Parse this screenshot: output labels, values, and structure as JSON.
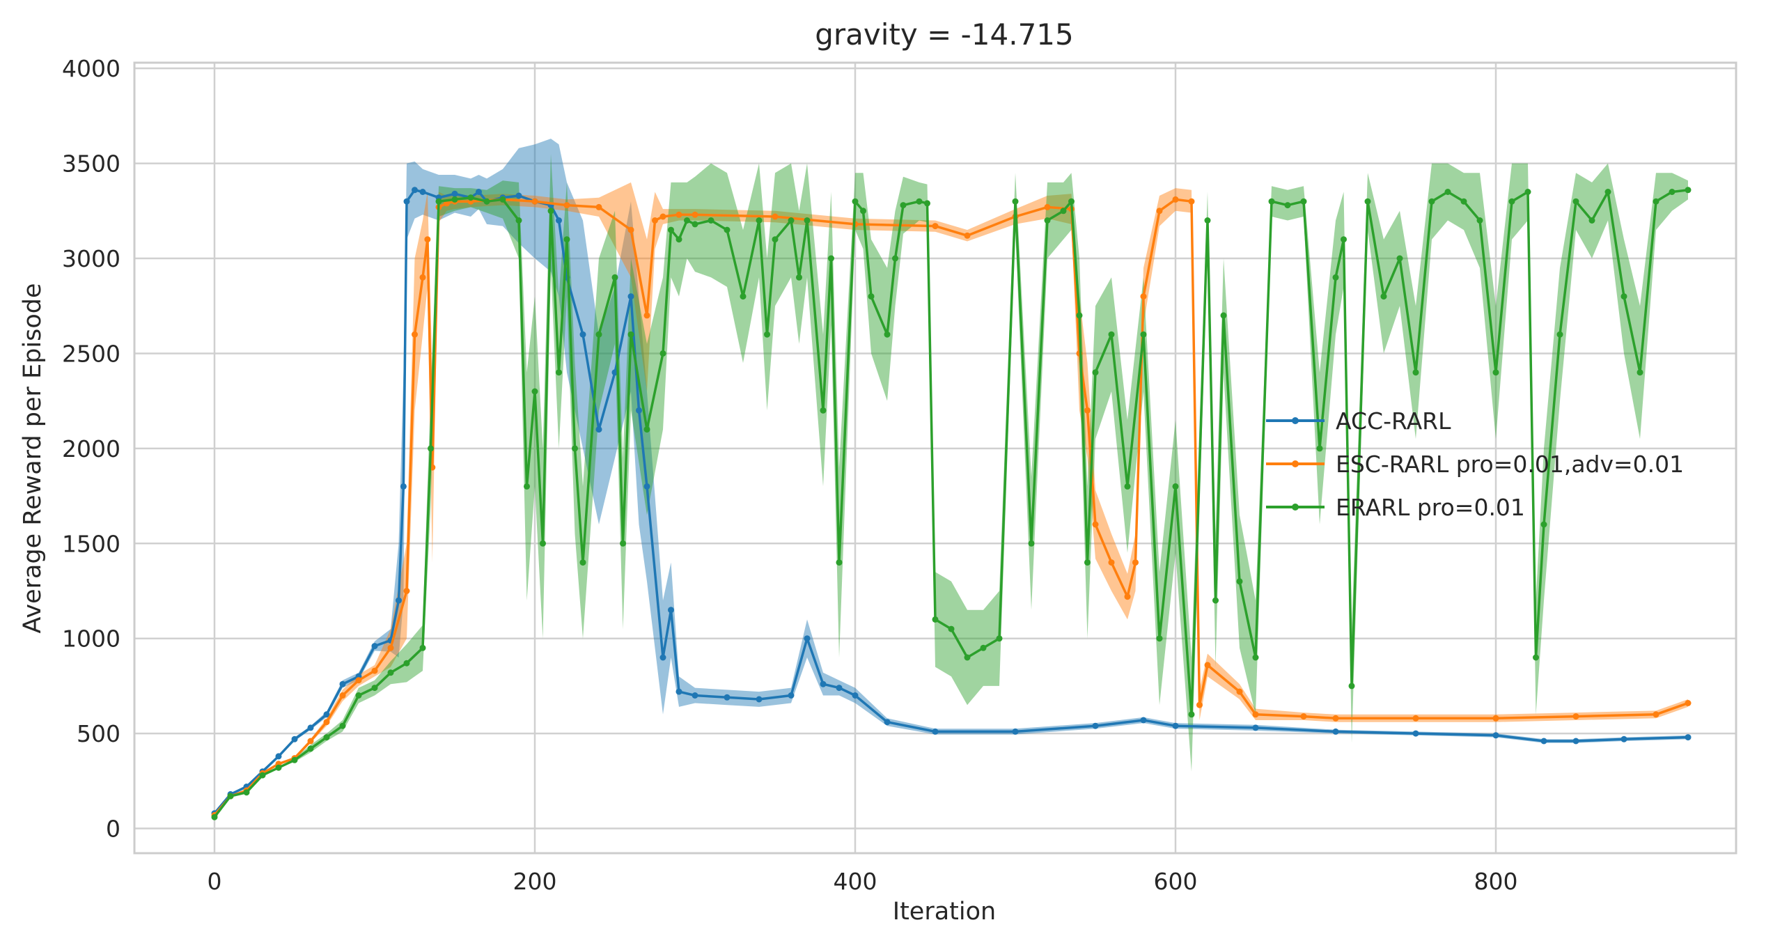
{
  "chart_data": {
    "type": "line",
    "title": "gravity = -14.715",
    "xlabel": "Iteration",
    "ylabel": "Average Reward per Episode",
    "xlim": [
      -50,
      950
    ],
    "ylim": [
      -130,
      4030
    ],
    "xticks": [
      0,
      200,
      400,
      600,
      800
    ],
    "yticks": [
      0,
      500,
      1000,
      1500,
      2000,
      2500,
      3000,
      3500,
      4000
    ],
    "grid": true,
    "legend": {
      "position": "right",
      "entries": [
        " ACC-RARL",
        "ESC-RARL pro=0.01,adv=0.01",
        "ERARL pro=0.01"
      ]
    },
    "series": [
      {
        "name": " ACC-RARL",
        "color": "#1f77b4",
        "x": [
          0,
          10,
          20,
          30,
          40,
          50,
          60,
          70,
          80,
          90,
          100,
          110,
          115,
          118,
          120,
          125,
          130,
          140,
          150,
          160,
          165,
          170,
          180,
          190,
          200,
          210,
          215,
          220,
          230,
          240,
          250,
          260,
          265,
          270,
          280,
          285,
          290,
          300,
          320,
          340,
          360,
          370,
          380,
          390,
          400,
          420,
          450,
          500,
          550,
          580,
          600,
          650,
          700,
          750,
          800,
          830,
          850,
          880,
          920
        ],
        "y": [
          80,
          180,
          220,
          300,
          380,
          470,
          530,
          600,
          760,
          800,
          960,
          990,
          1200,
          1800,
          3300,
          3360,
          3350,
          3320,
          3340,
          3320,
          3350,
          3300,
          3320,
          3330,
          3300,
          3280,
          3200,
          2900,
          2600,
          2100,
          2400,
          2800,
          2200,
          1800,
          900,
          1150,
          720,
          700,
          690,
          680,
          700,
          1000,
          760,
          740,
          700,
          560,
          510,
          510,
          540,
          570,
          540,
          530,
          510,
          500,
          490,
          460,
          460,
          470,
          480
        ],
        "band": [
          0,
          0,
          0,
          0,
          0,
          10,
          10,
          15,
          20,
          20,
          25,
          60,
          300,
          600,
          200,
          150,
          120,
          120,
          100,
          100,
          90,
          120,
          150,
          250,
          300,
          350,
          400,
          500,
          600,
          500,
          450,
          500,
          600,
          500,
          300,
          250,
          80,
          40,
          40,
          40,
          40,
          100,
          60,
          40,
          40,
          20,
          15,
          15,
          15,
          15,
          15,
          15,
          10,
          10,
          10,
          10,
          10,
          10,
          10
        ]
      },
      {
        "name": "ESC-RARL pro=0.01,adv=0.01",
        "color": "#ff7f0e",
        "x": [
          0,
          10,
          20,
          30,
          40,
          50,
          60,
          70,
          80,
          90,
          100,
          110,
          120,
          125,
          130,
          133,
          136,
          140,
          145,
          150,
          160,
          180,
          200,
          220,
          240,
          260,
          270,
          275,
          280,
          290,
          300,
          350,
          400,
          450,
          470,
          500,
          520,
          535,
          540,
          545,
          550,
          560,
          570,
          575,
          580,
          590,
          600,
          610,
          615,
          620,
          640,
          650,
          680,
          700,
          750,
          800,
          850,
          900,
          920
        ],
        "y": [
          70,
          170,
          200,
          290,
          340,
          370,
          460,
          560,
          700,
          780,
          830,
          950,
          1250,
          2600,
          2900,
          3100,
          1900,
          3270,
          3290,
          3300,
          3300,
          3310,
          3300,
          3280,
          3270,
          3150,
          2700,
          3200,
          3220,
          3230,
          3230,
          3220,
          3180,
          3170,
          3120,
          3220,
          3270,
          3260,
          2500,
          2200,
          1600,
          1400,
          1220,
          1400,
          2800,
          3250,
          3310,
          3300,
          650,
          860,
          720,
          600,
          590,
          580,
          580,
          580,
          590,
          600,
          660
        ],
        "band": [
          0,
          0,
          0,
          0,
          0,
          0,
          10,
          20,
          30,
          30,
          30,
          100,
          250,
          400,
          300,
          250,
          500,
          80,
          40,
          40,
          30,
          30,
          30,
          30,
          50,
          250,
          400,
          150,
          40,
          30,
          30,
          30,
          30,
          30,
          30,
          40,
          60,
          80,
          300,
          250,
          180,
          150,
          120,
          150,
          150,
          80,
          60,
          60,
          80,
          60,
          40,
          30,
          20,
          20,
          20,
          20,
          20,
          20,
          20
        ]
      },
      {
        "name": "ERARL pro=0.01",
        "color": "#2ca02c",
        "x": [
          0,
          10,
          20,
          30,
          40,
          50,
          60,
          70,
          80,
          90,
          100,
          110,
          120,
          130,
          135,
          140,
          150,
          160,
          170,
          180,
          190,
          195,
          200,
          205,
          210,
          215,
          220,
          225,
          230,
          240,
          250,
          255,
          260,
          270,
          280,
          285,
          290,
          295,
          300,
          310,
          320,
          330,
          340,
          345,
          350,
          360,
          365,
          370,
          380,
          385,
          390,
          400,
          405,
          410,
          420,
          425,
          430,
          440,
          445,
          450,
          460,
          470,
          480,
          490,
          500,
          510,
          520,
          530,
          535,
          540,
          545,
          550,
          560,
          570,
          580,
          590,
          600,
          610,
          620,
          625,
          630,
          640,
          650,
          660,
          670,
          680,
          690,
          700,
          705,
          710,
          720,
          730,
          740,
          750,
          760,
          770,
          780,
          790,
          800,
          810,
          820,
          825,
          830,
          840,
          850,
          860,
          870,
          880,
          890,
          900,
          910,
          920
        ],
        "y": [
          60,
          170,
          190,
          280,
          320,
          360,
          420,
          480,
          540,
          700,
          740,
          820,
          870,
          950,
          2000,
          3300,
          3310,
          3320,
          3300,
          3310,
          3200,
          1800,
          2300,
          1500,
          3250,
          2400,
          3100,
          2000,
          1400,
          2600,
          2900,
          1500,
          2600,
          2100,
          2500,
          3150,
          3100,
          3200,
          3180,
          3200,
          3150,
          2800,
          3200,
          2600,
          3100,
          3200,
          2900,
          3200,
          2200,
          3000,
          1400,
          3300,
          3250,
          2800,
          2600,
          3000,
          3280,
          3300,
          3290,
          1100,
          1050,
          900,
          950,
          1000,
          3300,
          1500,
          3200,
          3250,
          3300,
          2700,
          1400,
          2400,
          2600,
          1800,
          2600,
          1000,
          1800,
          600,
          3200,
          1200,
          2700,
          1300,
          900,
          3300,
          3280,
          3300,
          2000,
          2900,
          3100,
          750,
          3300,
          2800,
          3000,
          2400,
          3300,
          3350,
          3300,
          3200,
          2400,
          3300,
          3350,
          900,
          1600,
          2600,
          3300,
          3200,
          3350,
          2800,
          2400,
          3300,
          3350,
          3360
        ],
        "band": [
          0,
          0,
          0,
          0,
          0,
          10,
          20,
          20,
          30,
          40,
          40,
          60,
          100,
          120,
          300,
          80,
          60,
          50,
          60,
          100,
          200,
          600,
          500,
          500,
          300,
          400,
          300,
          450,
          400,
          400,
          350,
          450,
          400,
          450,
          400,
          250,
          300,
          200,
          250,
          300,
          300,
          350,
          300,
          400,
          350,
          300,
          350,
          300,
          400,
          350,
          500,
          150,
          200,
          300,
          350,
          250,
          150,
          100,
          100,
          250,
          250,
          250,
          200,
          250,
          150,
          350,
          200,
          150,
          150,
          300,
          400,
          350,
          300,
          350,
          300,
          350,
          350,
          300,
          150,
          350,
          300,
          350,
          300,
          80,
          80,
          80,
          400,
          300,
          250,
          300,
          150,
          300,
          250,
          350,
          200,
          150,
          150,
          250,
          350,
          200,
          150,
          300,
          400,
          350,
          150,
          200,
          150,
          300,
          350,
          150,
          100,
          50
        ]
      }
    ]
  }
}
